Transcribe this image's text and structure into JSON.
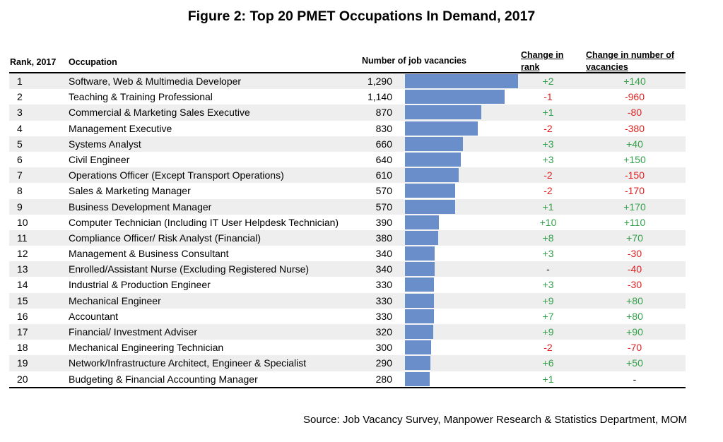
{
  "chart_data": {
    "type": "table",
    "title": "Figure 2: Top 20 PMET Occupations In Demand, 2017",
    "columns": {
      "rank": "Rank, 2017",
      "occupation": "Occupation",
      "vacancies": "Number of job vacancies",
      "change_rank": "Change in rank",
      "change_vacancies": "Change in number of vacancies"
    },
    "bar_max": 1290,
    "rows": [
      {
        "rank": "1",
        "occupation": "Software, Web & Multimedia Developer",
        "vacancies_label": "1,290",
        "vacancies": 1290,
        "change_rank": "+2",
        "change_vacancies": "+140"
      },
      {
        "rank": "2",
        "occupation": "Teaching & Training Professional",
        "vacancies_label": "1,140",
        "vacancies": 1140,
        "change_rank": "-1",
        "change_vacancies": "-960"
      },
      {
        "rank": "3",
        "occupation": "Commercial & Marketing Sales Executive",
        "vacancies_label": "870",
        "vacancies": 870,
        "change_rank": "+1",
        "change_vacancies": "-80"
      },
      {
        "rank": "4",
        "occupation": "Management Executive",
        "vacancies_label": "830",
        "vacancies": 830,
        "change_rank": "-2",
        "change_vacancies": "-380"
      },
      {
        "rank": "5",
        "occupation": "Systems Analyst",
        "vacancies_label": "660",
        "vacancies": 660,
        "change_rank": "+3",
        "change_vacancies": "+40"
      },
      {
        "rank": "6",
        "occupation": "Civil Engineer",
        "vacancies_label": "640",
        "vacancies": 640,
        "change_rank": "+3",
        "change_vacancies": "+150"
      },
      {
        "rank": "7",
        "occupation": "Operations Officer (Except Transport Operations)",
        "vacancies_label": "610",
        "vacancies": 610,
        "change_rank": "-2",
        "change_vacancies": "-150"
      },
      {
        "rank": "8",
        "occupation": "Sales & Marketing Manager",
        "vacancies_label": "570",
        "vacancies": 570,
        "change_rank": "-2",
        "change_vacancies": "-170"
      },
      {
        "rank": "9",
        "occupation": "Business Development Manager",
        "vacancies_label": "570",
        "vacancies": 570,
        "change_rank": "+1",
        "change_vacancies": "+170"
      },
      {
        "rank": "10",
        "occupation": "Computer Technician (Including IT User Helpdesk Technician)",
        "vacancies_label": "390",
        "vacancies": 390,
        "change_rank": "+10",
        "change_vacancies": "+110"
      },
      {
        "rank": "11",
        "occupation": "Compliance Officer/ Risk Analyst (Financial)",
        "vacancies_label": "380",
        "vacancies": 380,
        "change_rank": "+8",
        "change_vacancies": "+70"
      },
      {
        "rank": "12",
        "occupation": "Management & Business Consultant",
        "vacancies_label": "340",
        "vacancies": 340,
        "change_rank": "+3",
        "change_vacancies": "-30"
      },
      {
        "rank": "13",
        "occupation": "Enrolled/Assistant Nurse (Excluding Registered Nurse)",
        "vacancies_label": "340",
        "vacancies": 340,
        "change_rank": "-",
        "change_vacancies": "-40"
      },
      {
        "rank": "14",
        "occupation": "Industrial & Production Engineer",
        "vacancies_label": "330",
        "vacancies": 330,
        "change_rank": "+3",
        "change_vacancies": "-30"
      },
      {
        "rank": "15",
        "occupation": "Mechanical Engineer",
        "vacancies_label": "330",
        "vacancies": 330,
        "change_rank": "+9",
        "change_vacancies": "+80"
      },
      {
        "rank": "16",
        "occupation": "Accountant",
        "vacancies_label": "330",
        "vacancies": 330,
        "change_rank": "+7",
        "change_vacancies": "+80"
      },
      {
        "rank": "17",
        "occupation": "Financial/ Investment Adviser",
        "vacancies_label": "320",
        "vacancies": 320,
        "change_rank": "+9",
        "change_vacancies": "+90"
      },
      {
        "rank": "18",
        "occupation": "Mechanical Engineering Technician",
        "vacancies_label": "300",
        "vacancies": 300,
        "change_rank": "-2",
        "change_vacancies": "-70"
      },
      {
        "rank": "19",
        "occupation": "Network/Infrastructure Architect, Engineer & Specialist",
        "vacancies_label": "290",
        "vacancies": 290,
        "change_rank": "+6",
        "change_vacancies": "+50"
      },
      {
        "rank": "20",
        "occupation": "Budgeting & Financial Accounting Manager",
        "vacancies_label": "280",
        "vacancies": 280,
        "change_rank": "+1",
        "change_vacancies": "-"
      }
    ],
    "source": "Source: Job Vacancy Survey, Manpower Research & Statistics Department, MOM",
    "colors": {
      "bar": "#6a8ec9",
      "positive": "#33a04a",
      "negative": "#e02020",
      "row_shade": "#eeeeee"
    }
  }
}
